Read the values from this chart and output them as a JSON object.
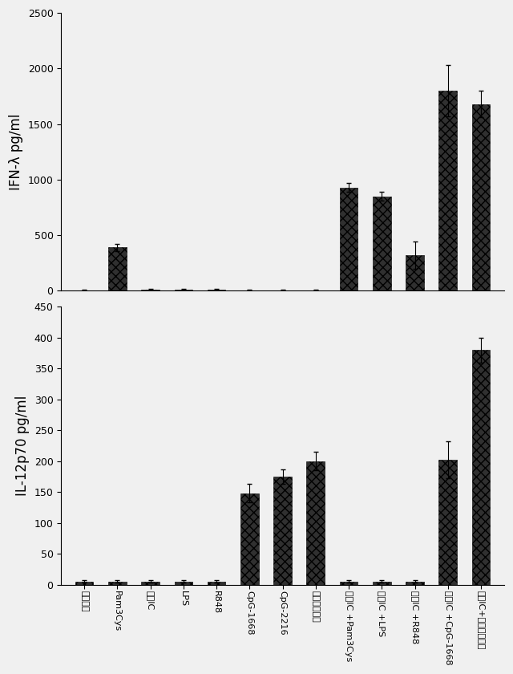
{
  "categories": [
    "制激無し",
    "Pam3Cys",
    "ポリIC",
    "LPS",
    "R848",
    "CpG-1668",
    "CpG-2216",
    "プロフィリン",
    "ポリIC +Pam3Cys",
    "ポリIC +LPS",
    "ポリIC +R848",
    "ポリIC +CpG-1668",
    "ポリIC+プロフィリン"
  ],
  "ifn_values": [
    5,
    390,
    10,
    10,
    10,
    5,
    5,
    5,
    930,
    850,
    320,
    1800,
    1680
  ],
  "ifn_errors": [
    2,
    30,
    5,
    5,
    5,
    2,
    2,
    2,
    40,
    40,
    120,
    230,
    120
  ],
  "il12_values": [
    5,
    5,
    5,
    5,
    5,
    148,
    175,
    200,
    5,
    5,
    5,
    202,
    380
  ],
  "il12_errors": [
    2,
    2,
    2,
    2,
    2,
    15,
    12,
    15,
    2,
    2,
    2,
    30,
    20
  ],
  "ifn_ylabel": "IFN-λ pg/ml",
  "il12_ylabel": "IL-12p70 pg/ml",
  "ifn_ylim": [
    0,
    2500
  ],
  "il12_ylim": [
    0,
    450
  ],
  "ifn_yticks": [
    0,
    500,
    1000,
    1500,
    2000,
    2500
  ],
  "il12_yticks": [
    0,
    50,
    100,
    150,
    200,
    250,
    300,
    350,
    400,
    450
  ],
  "bar_color": "#303030",
  "bar_edge_color": "#000000",
  "bar_width": 0.55,
  "fig_facecolor": "#f0f0f0",
  "fig_width": 6.4,
  "fig_height": 8.4,
  "dpi": 100,
  "ylabel_fontsize": 12,
  "tick_fontsize": 9,
  "xtick_fontsize": 8
}
